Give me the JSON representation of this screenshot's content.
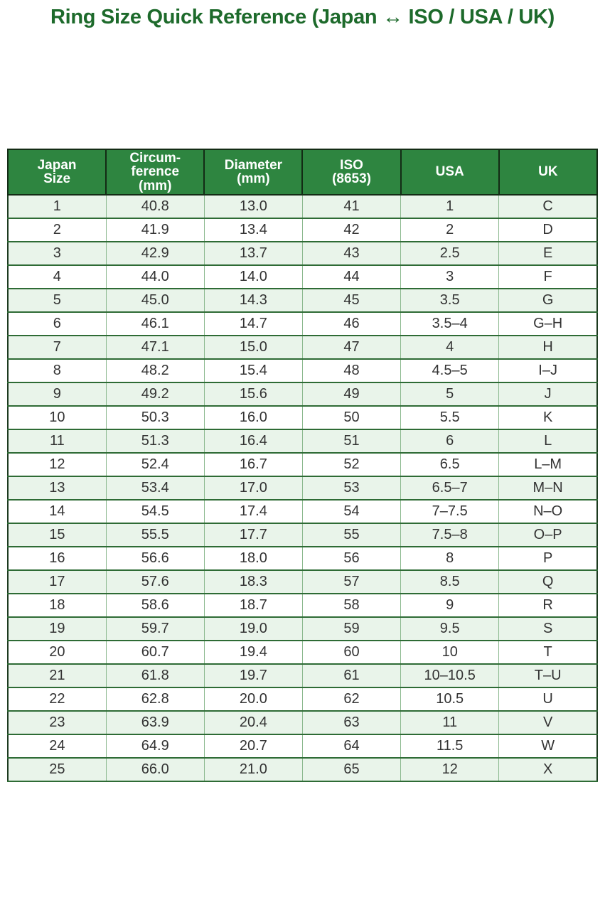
{
  "title": "Ring Size Quick Reference (Japan ↔ ISO / USA / UK)",
  "colors": {
    "title_green": "#1d6a2b",
    "header_bg": "#2e8540",
    "header_text": "#ffffff",
    "row_alt_bg": "#e9f4ea",
    "row_bg": "#ffffff",
    "border_dark": "#1c3a1f",
    "border_row": "#2e6b35",
    "border_col_light": "#8cb98f",
    "cell_text": "#333333"
  },
  "chart_data": {
    "type": "table",
    "title": "Ring Size Quick Reference (Japan ↔ ISO / USA / UK)",
    "columns": [
      "Japan Size",
      "Circumference (mm)",
      "Diameter (mm)",
      "ISO (8653)",
      "USA",
      "UK"
    ],
    "header_display": [
      "Japan\nSize",
      "Circum-\nference\n(mm)",
      "Diameter\n(mm)",
      "ISO\n(8653)",
      "USA",
      "UK"
    ],
    "rows": [
      [
        "1",
        "40.8",
        "13.0",
        "41",
        "1",
        "C"
      ],
      [
        "2",
        "41.9",
        "13.4",
        "42",
        "2",
        "D"
      ],
      [
        "3",
        "42.9",
        "13.7",
        "43",
        "2.5",
        "E"
      ],
      [
        "4",
        "44.0",
        "14.0",
        "44",
        "3",
        "F"
      ],
      [
        "5",
        "45.0",
        "14.3",
        "45",
        "3.5",
        "G"
      ],
      [
        "6",
        "46.1",
        "14.7",
        "46",
        "3.5–4",
        "G–H"
      ],
      [
        "7",
        "47.1",
        "15.0",
        "47",
        "4",
        "H"
      ],
      [
        "8",
        "48.2",
        "15.4",
        "48",
        "4.5–5",
        "I–J"
      ],
      [
        "9",
        "49.2",
        "15.6",
        "49",
        "5",
        "J"
      ],
      [
        "10",
        "50.3",
        "16.0",
        "50",
        "5.5",
        "K"
      ],
      [
        "11",
        "51.3",
        "16.4",
        "51",
        "6",
        "L"
      ],
      [
        "12",
        "52.4",
        "16.7",
        "52",
        "6.5",
        "L–M"
      ],
      [
        "13",
        "53.4",
        "17.0",
        "53",
        "6.5–7",
        "M–N"
      ],
      [
        "14",
        "54.5",
        "17.4",
        "54",
        "7–7.5",
        "N–O"
      ],
      [
        "15",
        "55.5",
        "17.7",
        "55",
        "7.5–8",
        "O–P"
      ],
      [
        "16",
        "56.6",
        "18.0",
        "56",
        "8",
        "P"
      ],
      [
        "17",
        "57.6",
        "18.3",
        "57",
        "8.5",
        "Q"
      ],
      [
        "18",
        "58.6",
        "18.7",
        "58",
        "9",
        "R"
      ],
      [
        "19",
        "59.7",
        "19.0",
        "59",
        "9.5",
        "S"
      ],
      [
        "20",
        "60.7",
        "19.4",
        "60",
        "10",
        "T"
      ],
      [
        "21",
        "61.8",
        "19.7",
        "61",
        "10–10.5",
        "T–U"
      ],
      [
        "22",
        "62.8",
        "20.0",
        "62",
        "10.5",
        "U"
      ],
      [
        "23",
        "63.9",
        "20.4",
        "63",
        "11",
        "V"
      ],
      [
        "24",
        "64.9",
        "20.7",
        "64",
        "11.5",
        "W"
      ],
      [
        "25",
        "66.0",
        "21.0",
        "65",
        "12",
        "X"
      ]
    ]
  }
}
